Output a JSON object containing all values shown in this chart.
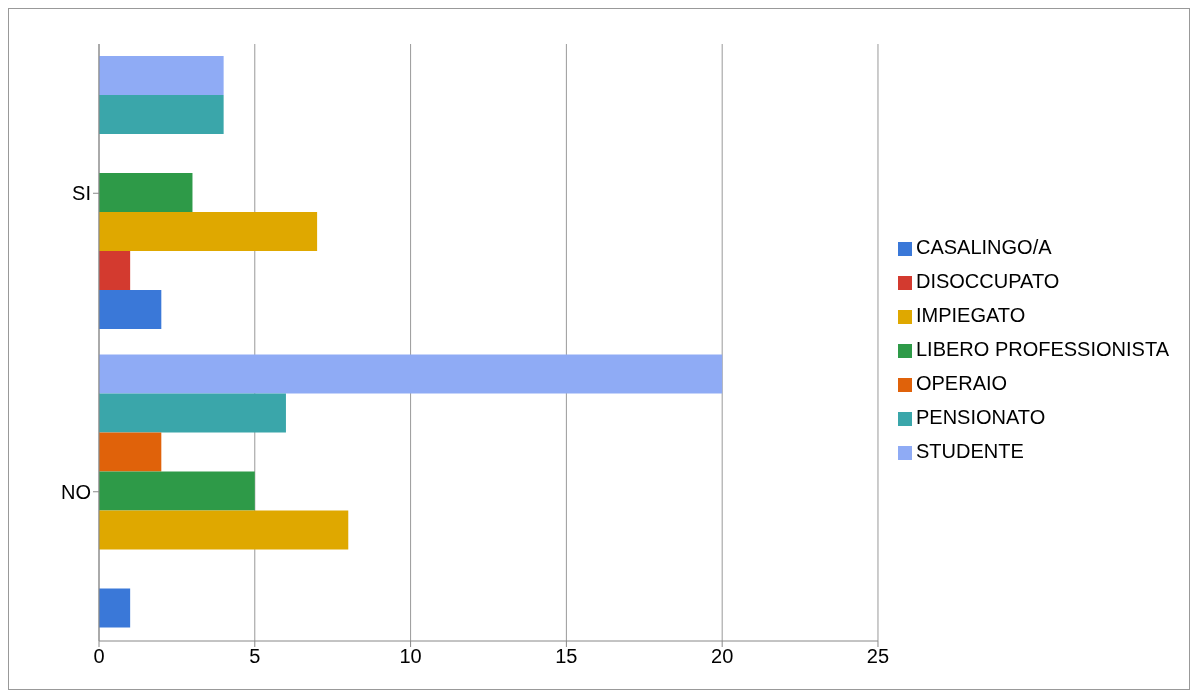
{
  "chart_data": {
    "type": "bar",
    "orientation": "horizontal",
    "categories": [
      "SI",
      "NO"
    ],
    "series": [
      {
        "name": "STUDENTE",
        "color": "#8fabf5",
        "values": [
          4,
          20
        ]
      },
      {
        "name": "PENSIONATO",
        "color": "#3aa6aa",
        "values": [
          4,
          6
        ]
      },
      {
        "name": "OPERAIO",
        "color": "#e0620a",
        "values": [
          0,
          2
        ]
      },
      {
        "name": "LIBERO PROFESSIONISTA",
        "color": "#2e9a48",
        "values": [
          3,
          5
        ]
      },
      {
        "name": "IMPIEGATO",
        "color": "#dfa800",
        "values": [
          7,
          8
        ]
      },
      {
        "name": "DISOCCUPATO",
        "color": "#d33a2f",
        "values": [
          1,
          0
        ]
      },
      {
        "name": "CASALINGO/A",
        "color": "#3a78d8",
        "values": [
          2,
          1
        ]
      }
    ],
    "xlim": [
      0,
      25
    ],
    "xticks": [
      0,
      5,
      10,
      15,
      20,
      25
    ],
    "grid": "x",
    "legend": "right"
  }
}
